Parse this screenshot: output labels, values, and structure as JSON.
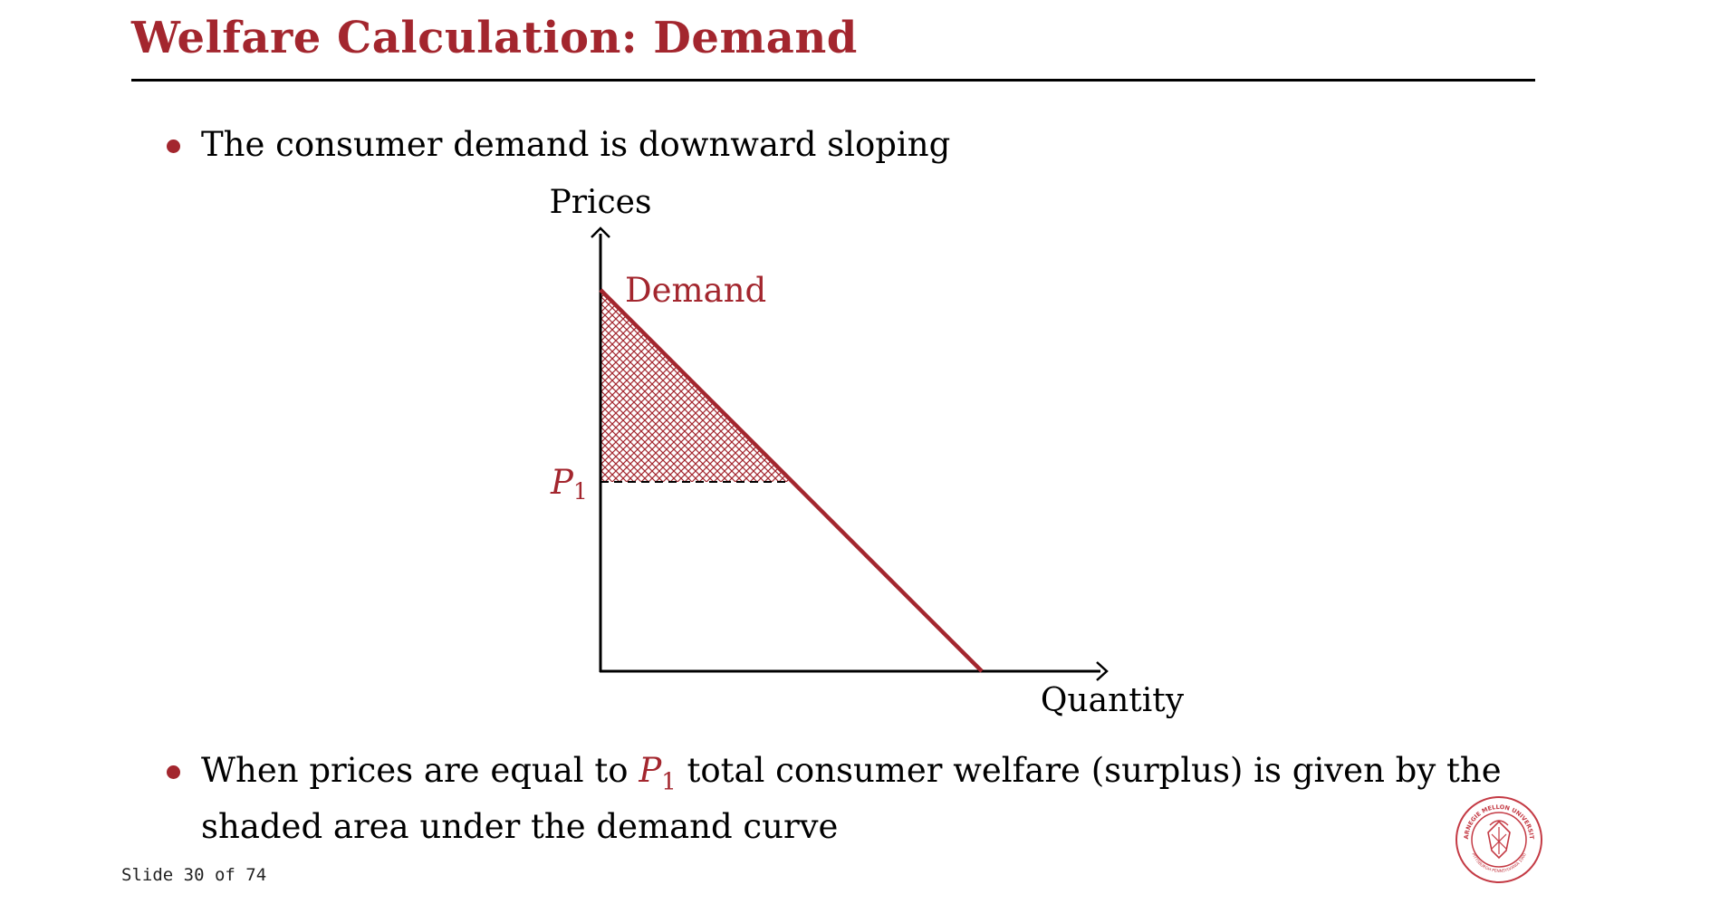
{
  "slide": {
    "title": "Welfare Calculation: Demand",
    "bullets": [
      {
        "text": "The consumer demand is downward sloping"
      },
      {
        "text_before": "When prices are equal to",
        "math_symbol": "P",
        "math_subscript": "1",
        "text_after": "total consumer welfare (surplus) is given by the shaded area under the demand curve"
      }
    ],
    "footer": "Slide 30 of 74"
  },
  "diagram": {
    "y_axis_label": "Prices",
    "x_axis_label": "Quantity",
    "curve_label": "Demand",
    "price_label_symbol": "P",
    "price_label_subscript": "1",
    "accent_color": "#a3262e"
  },
  "logo": {
    "text": "CARNEGIE MELLON UNIVERSITY",
    "subtext": "PITTSBURGH PENNSYLVANIA 1900"
  }
}
